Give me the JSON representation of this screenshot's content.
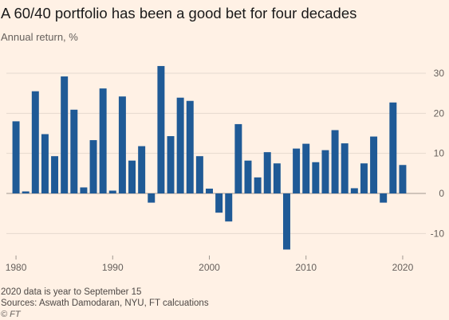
{
  "header": {
    "title": "A 60/40 portfolio has been a good bet for four decades",
    "subtitle": "Annual return, %"
  },
  "footer": {
    "note": "2020 data is year to September 15",
    "sources": "Sources: Aswath Damodaran, NYU, FT calcuations",
    "credit": "© FT"
  },
  "colors": {
    "background": "#fff1e5",
    "bar": "#1f5a96",
    "grid": "#e6d9ce",
    "zero_line": "#a09890"
  },
  "chart_data": {
    "type": "bar",
    "title": "A 60/40 portfolio has been a good bet for four decades",
    "ylabel": "Annual return, %",
    "xlabel": "",
    "categories": [
      1980,
      1981,
      1982,
      1983,
      1984,
      1985,
      1986,
      1987,
      1988,
      1989,
      1990,
      1991,
      1992,
      1993,
      1994,
      1995,
      1996,
      1997,
      1998,
      1999,
      2000,
      2001,
      2002,
      2003,
      2004,
      2005,
      2006,
      2007,
      2008,
      2009,
      2010,
      2011,
      2012,
      2013,
      2014,
      2015,
      2016,
      2017,
      2018,
      2019,
      2020
    ],
    "values": [
      18.0,
      0.5,
      25.5,
      14.8,
      9.3,
      29.2,
      20.9,
      1.5,
      13.3,
      26.2,
      0.7,
      24.2,
      8.2,
      11.8,
      -2.3,
      31.8,
      14.3,
      23.9,
      23.1,
      9.3,
      1.2,
      -4.8,
      -7.0,
      17.3,
      8.2,
      4.0,
      10.3,
      7.5,
      -14.0,
      11.2,
      12.4,
      7.8,
      10.8,
      15.8,
      12.5,
      1.3,
      7.5,
      14.2,
      -2.3,
      22.7,
      7.1
    ],
    "ylim": [
      -14,
      33
    ],
    "yticks": [
      -10,
      0,
      10,
      20,
      30
    ],
    "xticks": [
      1980,
      1990,
      2000,
      2010,
      2020
    ],
    "grid": true,
    "legend": "none"
  }
}
